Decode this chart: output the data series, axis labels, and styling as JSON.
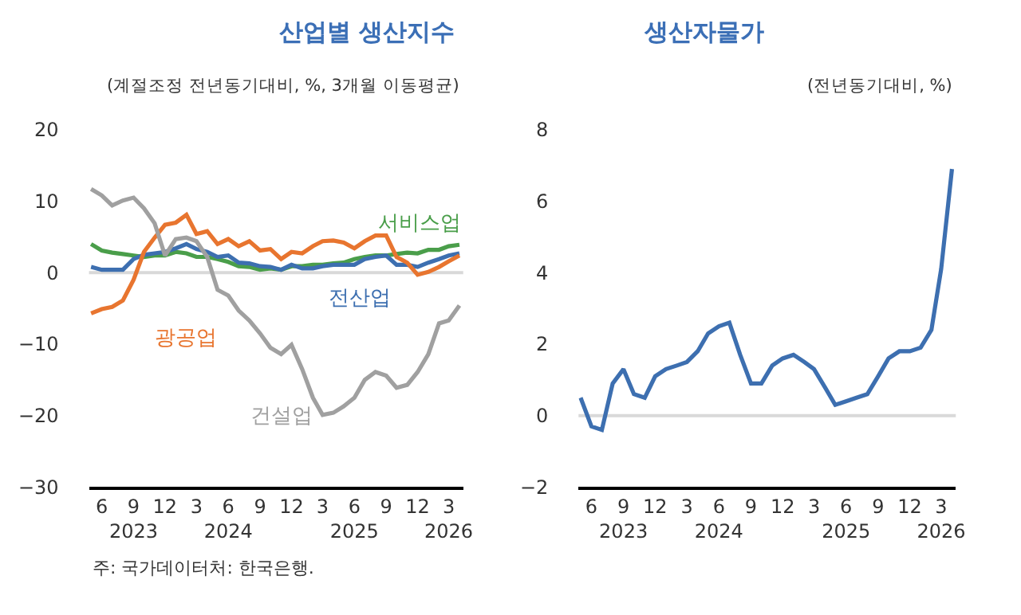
{
  "chart_data": [
    {
      "type": "line",
      "title": "산업별 생산지수",
      "subtitle": "(계절조정 전년동기대비, %, 3개월 이동평균)",
      "x": [
        "2023-05",
        "2023-06",
        "2023-07",
        "2023-08",
        "2023-09",
        "2023-10",
        "2023-11",
        "2023-12",
        "2024-01",
        "2024-02",
        "2024-03",
        "2024-04",
        "2024-05",
        "2024-06",
        "2024-07",
        "2024-08",
        "2024-09",
        "2024-10",
        "2024-11",
        "2024-12",
        "2025-01",
        "2025-02",
        "2025-03",
        "2025-04",
        "2025-05",
        "2025-06",
        "2025-07",
        "2025-08",
        "2025-09",
        "2025-10",
        "2025-11",
        "2025-12",
        "2026-01",
        "2026-02",
        "2026-03",
        "2026-04"
      ],
      "series": [
        {
          "name": "서비스업",
          "color": "#4a9e4a",
          "values": [
            4.0,
            3.1,
            2.8,
            2.6,
            2.4,
            2.2,
            2.4,
            2.4,
            2.9,
            2.7,
            2.2,
            2.2,
            1.9,
            1.5,
            0.9,
            0.8,
            0.4,
            0.6,
            0.4,
            0.9,
            0.9,
            1.1,
            1.1,
            1.3,
            1.4,
            1.9,
            2.2,
            2.4,
            2.4,
            2.6,
            2.8,
            2.7,
            3.2,
            3.2,
            3.7,
            3.9
          ]
        },
        {
          "name": "전산업",
          "color": "#3d6fb0",
          "values": [
            0.8,
            0.4,
            0.4,
            0.4,
            1.9,
            2.5,
            2.7,
            2.9,
            3.4,
            4.0,
            3.3,
            2.9,
            2.2,
            2.4,
            1.4,
            1.3,
            0.9,
            0.8,
            0.4,
            1.1,
            0.6,
            0.6,
            0.9,
            1.1,
            1.1,
            1.1,
            1.9,
            2.2,
            2.4,
            1.1,
            1.1,
            0.8,
            1.4,
            1.9,
            2.4,
            2.7
          ]
        },
        {
          "name": "광공업",
          "color": "#e8752f",
          "values": [
            -5.7,
            -5.1,
            -4.8,
            -3.9,
            -1.0,
            2.9,
            4.9,
            6.7,
            7.0,
            8.1,
            5.4,
            5.8,
            4.0,
            4.7,
            3.7,
            4.4,
            3.1,
            3.3,
            1.9,
            2.9,
            2.7,
            3.7,
            4.4,
            4.5,
            4.2,
            3.4,
            4.4,
            5.2,
            5.2,
            2.2,
            1.4,
            -0.3,
            0.1,
            0.8,
            1.6,
            2.4
          ]
        },
        {
          "name": "건설업",
          "color": "#a0a0a0",
          "values": [
            11.7,
            10.8,
            9.4,
            10.1,
            10.5,
            9.0,
            6.9,
            2.4,
            4.7,
            4.9,
            4.4,
            2.2,
            -2.4,
            -3.2,
            -5.3,
            -6.7,
            -8.5,
            -10.5,
            -11.4,
            -10.1,
            -13.5,
            -17.5,
            -19.9,
            -19.6,
            -18.7,
            -17.5,
            -15.0,
            -13.9,
            -14.4,
            -16.1,
            -15.7,
            -13.9,
            -11.4,
            -7.1,
            -6.7,
            -4.6
          ]
        }
      ],
      "xlim": [
        "2023-04-25",
        "2026-04-12"
      ],
      "xticks": [
        {
          "value": "2023-06",
          "label": "6"
        },
        {
          "value": "2023-09",
          "label": "9\n2023"
        },
        {
          "value": "2023-12",
          "label": "12"
        },
        {
          "value": "2024-03",
          "label": "3"
        },
        {
          "value": "2024-06",
          "label": "6\n2024"
        },
        {
          "value": "2024-09",
          "label": "9"
        },
        {
          "value": "2024-12",
          "label": "12"
        },
        {
          "value": "2025-03",
          "label": "3"
        },
        {
          "value": "2025-06",
          "label": "6\n2025"
        },
        {
          "value": "2025-09",
          "label": "9"
        },
        {
          "value": "2025-12",
          "label": "12"
        },
        {
          "value": "2026-03",
          "label": "3\n2026"
        }
      ],
      "ylim": [
        -30,
        20
      ],
      "yticks": [
        -30,
        -20,
        -10,
        0,
        10,
        20
      ],
      "ref_lines": [
        {
          "axis": "y",
          "value": 0,
          "color": "#d9d9d9"
        }
      ],
      "grid": false,
      "legend": false,
      "annotations": [
        "주: 국가데이터처: 한국은행."
      ]
    },
    {
      "type": "line",
      "title": "생산자물가",
      "subtitle": "(전년동기대비, %)",
      "x": [
        "2023-05",
        "2023-06",
        "2023-07",
        "2023-08",
        "2023-09",
        "2023-10",
        "2023-11",
        "2023-12",
        "2024-01",
        "2024-02",
        "2024-03",
        "2024-04",
        "2024-05",
        "2024-06",
        "2024-07",
        "2024-08",
        "2024-09",
        "2024-10",
        "2024-11",
        "2024-12",
        "2025-01",
        "2025-02",
        "2025-03",
        "2025-04",
        "2025-05",
        "2025-06",
        "2025-07",
        "2025-08",
        "2025-09",
        "2025-10",
        "2025-11",
        "2025-12",
        "2026-01",
        "2026-02",
        "2026-03",
        "2026-04"
      ],
      "series": [
        {
          "color": "#3d6fb0",
          "values": [
            0.5,
            -0.3,
            -0.4,
            0.9,
            1.3,
            0.6,
            0.5,
            1.1,
            1.3,
            1.4,
            1.5,
            1.8,
            2.3,
            2.5,
            2.6,
            1.7,
            0.9,
            0.9,
            1.4,
            1.6,
            1.7,
            1.5,
            1.3,
            0.8,
            0.3,
            0.4,
            0.5,
            0.6,
            1.1,
            1.6,
            1.8,
            1.8,
            1.9,
            2.4,
            4.1,
            6.9
          ]
        }
      ],
      "xlim": [
        "2023-04-25",
        "2026-04-12"
      ],
      "xticks": [
        {
          "value": "2023-06",
          "label": "6"
        },
        {
          "value": "2023-09",
          "label": "9\n2023"
        },
        {
          "value": "2023-12",
          "label": "12"
        },
        {
          "value": "2024-03",
          "label": "3"
        },
        {
          "value": "2024-06",
          "label": "6\n2024"
        },
        {
          "value": "2024-09",
          "label": "9"
        },
        {
          "value": "2024-12",
          "label": "12"
        },
        {
          "value": "2025-03",
          "label": "3"
        },
        {
          "value": "2025-06",
          "label": "6\n2025"
        },
        {
          "value": "2025-09",
          "label": "9"
        },
        {
          "value": "2025-12",
          "label": "12"
        },
        {
          "value": "2026-03",
          "label": "3\n2026"
        }
      ],
      "ylim": [
        -2,
        8
      ],
      "yticks": [
        -2,
        0,
        2,
        4,
        6,
        8
      ],
      "ref_lines": [
        {
          "axis": "y",
          "value": 0,
          "color": "#d9d9d9"
        }
      ],
      "grid": false,
      "legend": false
    }
  ]
}
